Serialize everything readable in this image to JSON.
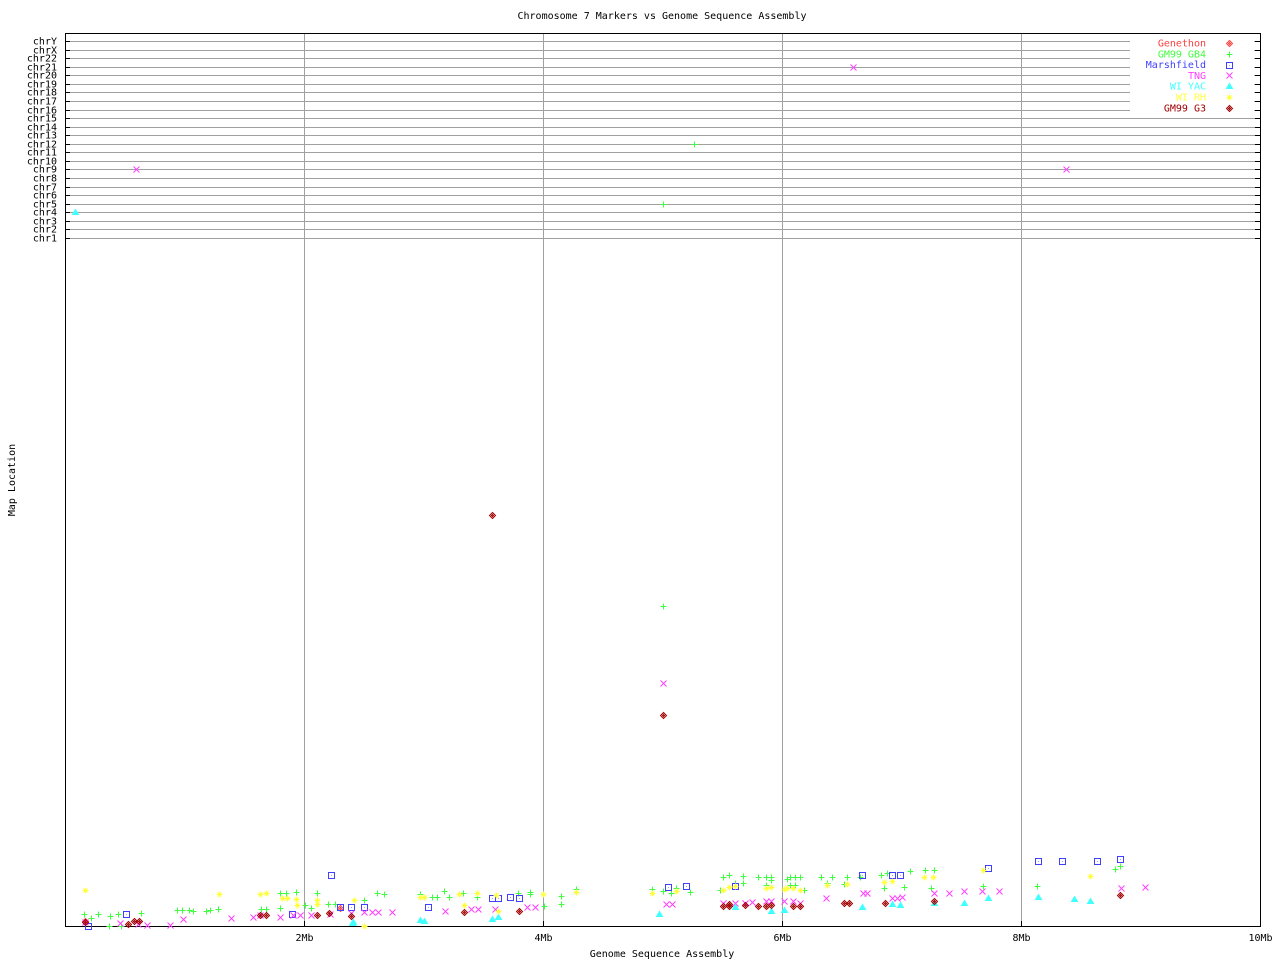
{
  "chart_data": {
    "type": "scatter",
    "title": "Chromosome 7 Markers vs Genome Sequence Assembly",
    "xlabel": "Genome Sequence Assembly",
    "ylabel": "Map Location",
    "x_unit": "Mb",
    "xlim": [
      0,
      10
    ],
    "x_ticks": [
      {
        "value": 2,
        "label": "2Mb"
      },
      {
        "value": 4,
        "label": "4Mb"
      },
      {
        "value": 6,
        "label": "6Mb"
      },
      {
        "value": 8,
        "label": "8Mb"
      },
      {
        "value": 10,
        "label": "10Mb"
      }
    ],
    "y_categories": [
      "chrY",
      "chrX",
      "chr22",
      "chr21",
      "chr20",
      "chr19",
      "chr18",
      "chr17",
      "chr16",
      "chr15",
      "chr14",
      "chr13",
      "chr12",
      "chr11",
      "chr10",
      "chr9",
      "chr8",
      "chr7",
      "chr6",
      "chr5",
      "chr4",
      "chr3",
      "chr2",
      "chr1"
    ],
    "ylim_map_location": [
      0,
      200
    ],
    "grid": true,
    "legend_position": "top-right",
    "series": [
      {
        "name": "Genethon",
        "color": "#ff4040",
        "marker": "diamond",
        "points": [
          [
            0.17,
            1.5
          ],
          [
            2.3,
            5.3
          ]
        ]
      },
      {
        "name": "GM99 GB4",
        "color": "#40ff40",
        "marker": "plus",
        "points": [
          [
            "5.26",
            "chr12"
          ],
          [
            "5.00",
            "chr5"
          ],
          [
            5.0,
            94
          ],
          [
            0.16,
            3.5
          ],
          [
            0.22,
            2.4
          ],
          [
            0.28,
            3.5
          ],
          [
            0.37,
            0
          ],
          [
            0.38,
            2.9
          ],
          [
            0.44,
            3.5
          ],
          [
            0.47,
            0
          ],
          [
            0.64,
            3.8
          ],
          [
            0.94,
            4.7
          ],
          [
            0.98,
            4.7
          ],
          [
            1.04,
            4.7
          ],
          [
            1.07,
            4.4
          ],
          [
            1.18,
            4.4
          ],
          [
            1.21,
            4.7
          ],
          [
            1.28,
            5
          ],
          [
            1.64,
            5
          ],
          [
            1.68,
            5
          ],
          [
            1.8,
            9.7
          ],
          [
            1.85,
            9.7
          ],
          [
            1.93,
            10
          ],
          [
            1.8,
            5.3
          ],
          [
            2.01,
            6.2
          ],
          [
            2.06,
            5.3
          ],
          [
            2.11,
            9.7
          ],
          [
            2.2,
            6.5
          ],
          [
            2.26,
            6.5
          ],
          [
            2.5,
            7.6
          ],
          [
            2.61,
            9.7
          ],
          [
            2.67,
            9.4
          ],
          [
            2.97,
            9.4
          ],
          [
            3.07,
            8.5
          ],
          [
            3.11,
            8.5
          ],
          [
            3.17,
            10.3
          ],
          [
            3.21,
            8.5
          ],
          [
            3.33,
            9.8
          ],
          [
            3.45,
            8.6
          ],
          [
            3.79,
            9.7
          ],
          [
            3.89,
            10.1
          ],
          [
            3.89,
            9.4
          ],
          [
            4.01,
            5.9
          ],
          [
            4.15,
            8.9
          ],
          [
            4.15,
            6.5
          ],
          [
            4.28,
            10.9
          ],
          [
            4.91,
            10.8
          ],
          [
            5.0,
            10.2
          ],
          [
            5.07,
            9.7
          ],
          [
            5.11,
            11.2
          ],
          [
            5.23,
            10.1
          ],
          [
            5.48,
            10.6
          ],
          [
            5.51,
            14.3
          ],
          [
            5.56,
            14.9
          ],
          [
            5.61,
            12.7
          ],
          [
            5.67,
            14.7
          ],
          [
            5.67,
            12.7
          ],
          [
            5.8,
            14.3
          ],
          [
            5.87,
            14.3
          ],
          [
            5.91,
            14.3
          ],
          [
            5.91,
            13.4
          ],
          [
            5.87,
            12.1
          ],
          [
            6.04,
            13.7
          ],
          [
            6.07,
            14.5
          ],
          [
            6.11,
            14.3
          ],
          [
            6.15,
            14.3
          ],
          [
            6.07,
            12.1
          ],
          [
            6.11,
            12.1
          ],
          [
            6.18,
            10.6
          ],
          [
            6.33,
            14.3
          ],
          [
            6.42,
            14.3
          ],
          [
            6.38,
            12.7
          ],
          [
            6.52,
            12.5
          ],
          [
            6.54,
            14.3
          ],
          [
            6.65,
            14.3
          ],
          [
            6.83,
            14.9
          ],
          [
            6.88,
            15.7
          ],
          [
            6.85,
            11.1
          ],
          [
            7.02,
            11.4
          ],
          [
            7.07,
            16.1
          ],
          [
            7.2,
            16.5
          ],
          [
            7.27,
            16.5
          ],
          [
            7.25,
            11.1
          ],
          [
            7.68,
            11.8
          ],
          [
            8.13,
            11.8
          ],
          [
            8.79,
            16.7
          ],
          [
            8.83,
            17.6
          ]
        ]
      },
      {
        "name": "Marshfield",
        "color": "#4040ff",
        "marker": "square",
        "points": [
          [
            0.19,
            0
          ],
          [
            0.51,
            3.5
          ],
          [
            1.9,
            3.5
          ],
          [
            2.23,
            15
          ],
          [
            2.3,
            5.7
          ],
          [
            2.39,
            5.7
          ],
          [
            2.5,
            5.7
          ],
          [
            3.04,
            5.7
          ],
          [
            3.57,
            8.2
          ],
          [
            3.62,
            8.2
          ],
          [
            3.72,
            8.6
          ],
          [
            3.8,
            8.2
          ],
          [
            5.05,
            11.6
          ],
          [
            5.2,
            11.8
          ],
          [
            5.61,
            11.9
          ],
          [
            6.67,
            14.9
          ],
          [
            6.92,
            14.9
          ],
          [
            6.99,
            14.9
          ],
          [
            7.72,
            17
          ],
          [
            8.14,
            19
          ],
          [
            8.34,
            19
          ],
          [
            8.64,
            19
          ],
          [
            8.83,
            19.6
          ]
        ]
      },
      {
        "name": "TNG",
        "color": "#ff40ff",
        "marker": "cross",
        "points": [
          [
            "0.59",
            "chr9"
          ],
          [
            "6.59",
            "chr21"
          ],
          [
            "8.38",
            "chr9"
          ],
          [
            5.0,
            71.5
          ],
          [
            0.17,
            1.3
          ],
          [
            0.46,
            0.9
          ],
          [
            0.61,
            0.6
          ],
          [
            0.69,
            0.3
          ],
          [
            0.88,
            0.3
          ],
          [
            0.99,
            2
          ],
          [
            1.39,
            2.4
          ],
          [
            1.57,
            2.6
          ],
          [
            1.63,
            3.2
          ],
          [
            1.8,
            2.7
          ],
          [
            1.91,
            3.2
          ],
          [
            1.97,
            3.2
          ],
          [
            2.06,
            3.2
          ],
          [
            2.22,
            3.5
          ],
          [
            2.39,
            3.8
          ],
          [
            2.5,
            4.1
          ],
          [
            2.57,
            4.1
          ],
          [
            2.62,
            4.1
          ],
          [
            2.74,
            4.1
          ],
          [
            3.18,
            4.5
          ],
          [
            3.4,
            5
          ],
          [
            3.46,
            5
          ],
          [
            3.6,
            5
          ],
          [
            3.87,
            5.6
          ],
          [
            3.93,
            5.6
          ],
          [
            5.03,
            6.5
          ],
          [
            5.08,
            6.5
          ],
          [
            5.51,
            6.9
          ],
          [
            5.61,
            6.9
          ],
          [
            5.69,
            6.9
          ],
          [
            5.75,
            7.2
          ],
          [
            5.87,
            7.5
          ],
          [
            5.91,
            7.5
          ],
          [
            6.02,
            7.5
          ],
          [
            6.09,
            7.5
          ],
          [
            6.15,
            6.9
          ],
          [
            6.37,
            8.2
          ],
          [
            6.68,
            9.6
          ],
          [
            6.71,
            9.6
          ],
          [
            6.92,
            8.2
          ],
          [
            6.96,
            8.2
          ],
          [
            7.0,
            8.6
          ],
          [
            7.27,
            9.8
          ],
          [
            7.4,
            9.8
          ],
          [
            7.52,
            10.2
          ],
          [
            7.67,
            10.4
          ],
          [
            7.82,
            10.4
          ],
          [
            8.84,
            11.1
          ],
          [
            9.04,
            11.4
          ]
        ]
      },
      {
        "name": "WI YAC",
        "color": "#40ffff",
        "marker": "triangle",
        "points": [
          [
            "0.08",
            "chr4"
          ],
          [
            2.4,
            0.9
          ],
          [
            2.41,
            1.3
          ],
          [
            2.97,
            1.8
          ],
          [
            3.0,
            1.5
          ],
          [
            3.57,
            2
          ],
          [
            3.62,
            2.6
          ],
          [
            4.97,
            3.5
          ],
          [
            5.61,
            5.6
          ],
          [
            5.91,
            4.5
          ],
          [
            6.02,
            4.7
          ],
          [
            6.67,
            5.7
          ],
          [
            6.92,
            6.5
          ],
          [
            6.99,
            6.2
          ],
          [
            7.27,
            6.9
          ],
          [
            7.52,
            6.9
          ],
          [
            7.72,
            8.3
          ],
          [
            8.14,
            8.5
          ],
          [
            8.44,
            7.9
          ],
          [
            8.58,
            7.4
          ]
        ]
      },
      {
        "name": "WI RH",
        "color": "#ffff40",
        "marker": "asterisk",
        "points": [
          [
            0.17,
            10.5
          ],
          [
            1.29,
            9.3
          ],
          [
            1.63,
            9.4
          ],
          [
            1.68,
            9.7
          ],
          [
            1.82,
            8.2
          ],
          [
            1.86,
            8.2
          ],
          [
            1.93,
            7.9
          ],
          [
            1.94,
            6.2
          ],
          [
            2.11,
            7.6
          ],
          [
            2.11,
            6.6
          ],
          [
            2.42,
            7.6
          ],
          [
            2.5,
            0
          ],
          [
            2.97,
            8.6
          ],
          [
            3.0,
            8.6
          ],
          [
            3.3,
            9.4
          ],
          [
            3.34,
            6.2
          ],
          [
            3.45,
            9.8
          ],
          [
            3.61,
            9.1
          ],
          [
            3.62,
            4.4
          ],
          [
            4.0,
            9.4
          ],
          [
            4.28,
            10
          ],
          [
            4.91,
            9.7
          ],
          [
            5.11,
            10.2
          ],
          [
            5.51,
            10.6
          ],
          [
            5.56,
            11.5
          ],
          [
            5.61,
            11.9
          ],
          [
            5.87,
            11.2
          ],
          [
            5.91,
            11.4
          ],
          [
            6.02,
            10.9
          ],
          [
            6.04,
            11.2
          ],
          [
            6.09,
            11.2
          ],
          [
            6.15,
            10.6
          ],
          [
            6.38,
            12
          ],
          [
            6.54,
            12.5
          ],
          [
            6.85,
            13
          ],
          [
            6.92,
            13.3
          ],
          [
            7.19,
            14.3
          ],
          [
            7.26,
            14.3
          ],
          [
            7.68,
            16.5
          ],
          [
            8.58,
            14.7
          ]
        ]
      },
      {
        "name": "GM99 G3",
        "color": "#a00000",
        "marker": "diamond",
        "points": [
          [
            3.57,
            121
          ],
          [
            5.0,
            62
          ],
          [
            0.17,
            1.3
          ],
          [
            0.53,
            0.6
          ],
          [
            0.58,
            1.5
          ],
          [
            0.62,
            1.5
          ],
          [
            1.63,
            3.2
          ],
          [
            1.68,
            3.2
          ],
          [
            2.11,
            3.2
          ],
          [
            2.21,
            3.8
          ],
          [
            2.39,
            2.9
          ],
          [
            3.34,
            4.1
          ],
          [
            3.8,
            4.5
          ],
          [
            5.51,
            5.9
          ],
          [
            5.56,
            5.9
          ],
          [
            5.56,
            6.5
          ],
          [
            5.69,
            6.1
          ],
          [
            5.8,
            5.9
          ],
          [
            5.87,
            5.9
          ],
          [
            5.91,
            6.1
          ],
          [
            6.09,
            5.9
          ],
          [
            6.15,
            5.9
          ],
          [
            6.52,
            6.9
          ],
          [
            6.56,
            6.9
          ],
          [
            6.86,
            6.9
          ],
          [
            7.27,
            7.5
          ],
          [
            8.83,
            9.1
          ]
        ]
      }
    ]
  }
}
